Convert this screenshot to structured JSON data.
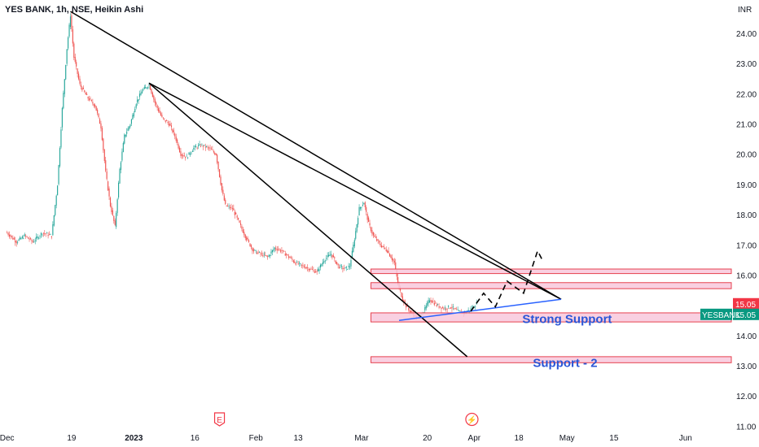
{
  "header": {
    "title": "YES BANK, 1h, NSE, Heikin Ashi"
  },
  "chart_data": {
    "type": "candlestick",
    "symbol": "YESBANK",
    "currency_label": "INR",
    "y_axis_ticks": [
      "24.00",
      "23.00",
      "22.00",
      "21.00",
      "20.00",
      "19.00",
      "18.00",
      "17.00",
      "16.00",
      "15.00",
      "14.00",
      "13.00",
      "12.00",
      "11.00"
    ],
    "y_axis_ticks_values": [
      24,
      23,
      22,
      21,
      20,
      19,
      18,
      17,
      16,
      15,
      14,
      13,
      12,
      11
    ],
    "ylim": [
      10.85,
      25.1
    ],
    "x_axis_ticks": [
      {
        "label": "Dec",
        "index": 0
      },
      {
        "label": "19",
        "index": 55
      },
      {
        "label": "2023",
        "index": 108,
        "bold": true
      },
      {
        "label": "16",
        "index": 160
      },
      {
        "label": "Feb",
        "index": 212
      },
      {
        "label": "13",
        "index": 248
      },
      {
        "label": "Mar",
        "index": 302
      },
      {
        "label": "20",
        "index": 358
      },
      {
        "label": "Apr",
        "index": 398
      },
      {
        "label": "18",
        "index": 436
      },
      {
        "label": "May",
        "index": 477
      },
      {
        "label": "15",
        "index": 517
      },
      {
        "label": "Jun",
        "index": 578
      }
    ],
    "x_range": [
      -6,
      617
    ],
    "price_path": [
      [
        0,
        17.4
      ],
      [
        8,
        17.1
      ],
      [
        15,
        17.3
      ],
      [
        22,
        17.1
      ],
      [
        30,
        17.4
      ],
      [
        38,
        17.3
      ],
      [
        43,
        19.0
      ],
      [
        47,
        21.5
      ],
      [
        51,
        23.5
      ],
      [
        54,
        24.6
      ],
      [
        57,
        23.2
      ],
      [
        62,
        22.3
      ],
      [
        68,
        21.9
      ],
      [
        75,
        21.6
      ],
      [
        80,
        20.9
      ],
      [
        84,
        19.4
      ],
      [
        88,
        18.3
      ],
      [
        92,
        17.6
      ],
      [
        96,
        19.5
      ],
      [
        100,
        20.6
      ],
      [
        105,
        21.0
      ],
      [
        110,
        21.7
      ],
      [
        115,
        22.1
      ],
      [
        121,
        22.3
      ],
      [
        126,
        21.7
      ],
      [
        132,
        21.2
      ],
      [
        138,
        21.0
      ],
      [
        143,
        20.6
      ],
      [
        148,
        20.0
      ],
      [
        153,
        19.9
      ],
      [
        159,
        20.2
      ],
      [
        165,
        20.3
      ],
      [
        172,
        20.2
      ],
      [
        178,
        20.0
      ],
      [
        183,
        18.8
      ],
      [
        186,
        18.3
      ],
      [
        192,
        18.2
      ],
      [
        198,
        17.7
      ],
      [
        204,
        17.2
      ],
      [
        210,
        16.8
      ],
      [
        216,
        16.7
      ],
      [
        222,
        16.6
      ],
      [
        228,
        16.9
      ],
      [
        234,
        16.8
      ],
      [
        240,
        16.6
      ],
      [
        246,
        16.4
      ],
      [
        252,
        16.3
      ],
      [
        258,
        16.2
      ],
      [
        264,
        16.1
      ],
      [
        270,
        16.5
      ],
      [
        276,
        16.7
      ],
      [
        282,
        16.3
      ],
      [
        288,
        16.2
      ],
      [
        292,
        16.3
      ],
      [
        296,
        17.2
      ],
      [
        300,
        18.2
      ],
      [
        304,
        18.4
      ],
      [
        308,
        17.7
      ],
      [
        312,
        17.3
      ],
      [
        318,
        17.0
      ],
      [
        324,
        16.8
      ],
      [
        330,
        16.4
      ],
      [
        333,
        15.7
      ],
      [
        337,
        15.2
      ],
      [
        341,
        14.9
      ],
      [
        346,
        14.7
      ],
      [
        350,
        14.6
      ],
      [
        355,
        14.8
      ],
      [
        360,
        15.2
      ],
      [
        366,
        15.0
      ],
      [
        372,
        14.9
      ],
      [
        378,
        14.95
      ],
      [
        384,
        14.8
      ],
      [
        390,
        14.75
      ],
      [
        396,
        14.9
      ],
      [
        400,
        15.05
      ]
    ],
    "annotations": {
      "trendlines": [
        {
          "name": "upper-resistance-line",
          "from": [
            54,
            24.72
          ],
          "to": [
            472,
            15.2
          ],
          "color": "#000000"
        },
        {
          "name": "long-resistance-line",
          "from": [
            121,
            22.35
          ],
          "to": [
            472,
            15.2
          ],
          "color": "#000000"
        },
        {
          "name": "steep-down-line",
          "from": [
            121,
            22.35
          ],
          "to": [
            392,
            13.3
          ],
          "color": "#000000"
        },
        {
          "name": "rising-support-line",
          "from": [
            334,
            14.5
          ],
          "to": [
            472,
            15.2
          ],
          "color": "#2962ff"
        }
      ],
      "projected_path": [
        [
          395,
          14.8
        ],
        [
          406,
          15.4
        ],
        [
          416,
          14.95
        ],
        [
          426,
          15.8
        ],
        [
          440,
          15.4
        ],
        [
          452,
          16.8
        ],
        [
          456,
          16.5
        ]
      ],
      "zones": [
        {
          "name": "resistance-zone-upper",
          "y1": 16.2,
          "y2": 16.05,
          "x_start": 310
        },
        {
          "name": "resistance-zone-lower",
          "y1": 15.75,
          "y2": 15.55,
          "x_start": 310
        },
        {
          "name": "strong-support-zone",
          "y1": 14.75,
          "y2": 14.45,
          "x_start": 310,
          "label": "Strong Support",
          "label_at": [
            439,
            14.55
          ]
        },
        {
          "name": "support-2-zone",
          "y1": 13.3,
          "y2": 13.1,
          "x_start": 310,
          "label": "Support - 2",
          "label_at": [
            448,
            13.1
          ]
        }
      ]
    },
    "event_markers": [
      {
        "name": "earnings-marker",
        "label": "E",
        "index": 181
      },
      {
        "name": "dividend-marker",
        "label": "⚡",
        "index": 396
      }
    ],
    "price_tags": [
      {
        "name": "last-price-tag",
        "value": "15.05",
        "y": 15.05,
        "color": "#f23645",
        "label": ""
      },
      {
        "name": "symbol-price-tag",
        "value": "15.05",
        "y": 14.7,
        "color": "#089981",
        "label": "YESBANK"
      }
    ]
  },
  "colors": {
    "up": "#26a69a",
    "down": "#ef5350",
    "zone_fill": "#f8c8dc",
    "zone_border": "#e6424f",
    "axis_text": "#131722"
  }
}
